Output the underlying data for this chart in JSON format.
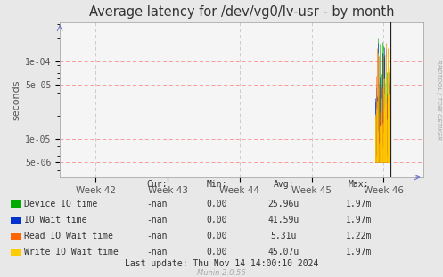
{
  "title": "Average latency for /dev/vg0/lv-usr - by month",
  "ylabel": "seconds",
  "background_color": "#e8e8e8",
  "plot_background_color": "#f5f5f5",
  "x_tick_labels": [
    "Week 42",
    "Week 43",
    "Week 44",
    "Week 45",
    "Week 46"
  ],
  "yticks": [
    5e-06,
    1e-05,
    5e-05,
    0.0001
  ],
  "ytick_labels": [
    "5e-06",
    "1e-05",
    "5e-05",
    "1e-04"
  ],
  "series": [
    {
      "label": "Device IO time",
      "color": "#00aa00"
    },
    {
      "label": "IO Wait time",
      "color": "#0033cc"
    },
    {
      "label": "Read IO Wait time",
      "color": "#ff6600"
    },
    {
      "label": "Write IO Wait time",
      "color": "#ffcc00"
    }
  ],
  "legend_headers": [
    "Cur:",
    "Min:",
    "Avg:",
    "Max:"
  ],
  "legend_rows": [
    [
      "-nan",
      "0.00",
      "25.96u",
      "1.97m"
    ],
    [
      "-nan",
      "0.00",
      "41.59u",
      "1.97m"
    ],
    [
      "-nan",
      "0.00",
      "5.31u",
      "1.22m"
    ],
    [
      "-nan",
      "0.00",
      "45.07u",
      "1.97m"
    ]
  ],
  "last_update": "Last update: Thu Nov 14 14:00:10 2024",
  "munin_version": "Munin 2.0.56",
  "rrdtool_label": "RRDTOOL / TOBI OETIKER"
}
